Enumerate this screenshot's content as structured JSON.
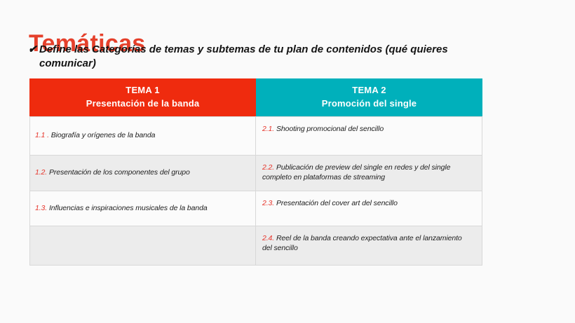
{
  "page": {
    "background_color": "#FAFAFA"
  },
  "title": {
    "text": "Temáticas",
    "color": "#E5402B"
  },
  "subtitle": {
    "check_icon": "✔",
    "text": "Define las Categorías de temas y subtemas de tu plan de contenidos (qué quieres comunicar)"
  },
  "table": {
    "header": {
      "col1": {
        "line1": "TEMA 1",
        "line2": "Presentación de la banda",
        "color": "#EF2B0E"
      },
      "col2": {
        "line1": "TEMA 2",
        "line2": "Promoción del single",
        "color": "#00B0BB"
      }
    },
    "accent_number_color": "#E6352B",
    "row_color": "#FBFBFB",
    "row_alt_color": "#ECECEC",
    "border_color": "#D8D8D8",
    "rows": [
      {
        "left_num": "1.1 .",
        "left_text": "Biografía y orígenes de la banda",
        "right_num": "2.1.",
        "right_text": "Shooting promocional del sencillo"
      },
      {
        "left_num": "1.2.",
        "left_text": "Presentación de los componentes del grupo",
        "right_num": "2.2.",
        "right_text": "Publicación  de preview del single en redes y del single completo en plataformas de streaming"
      },
      {
        "left_num": "1.3.",
        "left_text": "Influencias e inspiraciones musicales de la banda",
        "right_num": "2.3.",
        "right_text": "Presentación del cover art del sencillo"
      },
      {
        "left_num": "",
        "left_text": "",
        "right_num": "2.4.",
        "right_text": "Reel de la banda creando expectativa ante el lanzamiento del sencillo"
      }
    ]
  }
}
